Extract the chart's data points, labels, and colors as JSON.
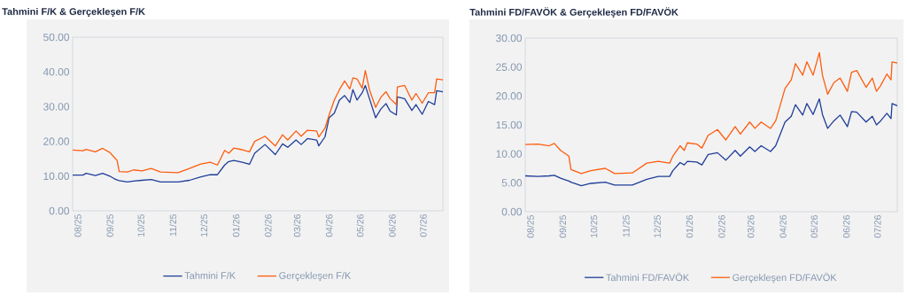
{
  "chart_data": [
    {
      "type": "line",
      "title": "Tahmini F/K & Gerçekleşen F/K",
      "x": [
        "2025-07-27",
        "2025-08-06",
        "2025-08-09",
        "2025-08-18",
        "2025-08-25",
        "2025-09-01",
        "2025-09-05",
        "2025-09-08",
        "2025-09-10",
        "2025-09-18",
        "2025-09-24",
        "2025-10-02",
        "2025-10-11",
        "2025-10-20",
        "2025-11-06",
        "2025-11-17",
        "2025-11-28",
        "2025-12-07",
        "2025-12-14",
        "2025-12-21",
        "2025-12-25",
        "2025-12-30",
        "2026-01-07",
        "2026-01-14",
        "2026-01-19",
        "2026-01-29",
        "2026-02-08",
        "2026-02-15",
        "2026-02-20",
        "2026-02-28",
        "2026-03-05",
        "2026-03-11",
        "2026-03-20",
        "2026-03-22",
        "2026-03-28",
        "2026-04-01",
        "2026-04-06",
        "2026-04-11",
        "2026-04-16",
        "2026-04-21",
        "2026-04-24",
        "2026-04-28",
        "2026-05-03",
        "2026-05-06",
        "2026-05-10",
        "2026-05-16",
        "2026-05-21",
        "2026-05-26",
        "2026-05-30",
        "2026-06-05",
        "2026-06-06",
        "2026-06-13",
        "2026-06-20",
        "2026-06-24",
        "2026-06-30",
        "2026-07-06",
        "2026-07-12",
        "2026-07-14",
        "2026-07-20"
      ],
      "series": [
        {
          "name": "Tahmini F/K",
          "color": "#1f3d99",
          "values": [
            10.3,
            10.3,
            10.8,
            10.2,
            10.8,
            10.0,
            9.3,
            8.9,
            8.7,
            8.3,
            8.6,
            8.8,
            9.0,
            8.3,
            8.3,
            8.8,
            9.8,
            10.4,
            10.4,
            13.2,
            14.2,
            14.5,
            14.0,
            13.4,
            16.6,
            19.1,
            16.2,
            19.3,
            18.3,
            20.4,
            19.1,
            20.8,
            20.4,
            18.7,
            21.3,
            26.8,
            28.1,
            31.9,
            33.2,
            31.2,
            34.9,
            31.9,
            34.0,
            36.1,
            32.3,
            26.8,
            29.3,
            30.9,
            28.7,
            27.6,
            32.8,
            32.3,
            28.9,
            30.6,
            27.8,
            31.5,
            30.6,
            34.6,
            34.3
          ]
        },
        {
          "name": "Gerçekleşen F/K",
          "color": "#fe5c0e",
          "values": [
            17.5,
            17.3,
            17.7,
            17.0,
            18.0,
            16.8,
            15.5,
            14.5,
            11.3,
            11.2,
            11.8,
            11.5,
            12.2,
            11.2,
            11.0,
            12.2,
            13.5,
            14.0,
            13.2,
            17.4,
            16.6,
            18.1,
            17.6,
            17.0,
            20.0,
            21.5,
            18.7,
            21.9,
            20.4,
            23.0,
            21.5,
            23.2,
            23.0,
            21.3,
            23.8,
            27.6,
            31.9,
            34.9,
            37.4,
            35.1,
            38.3,
            38.0,
            35.3,
            40.4,
            34.9,
            29.8,
            32.7,
            34.3,
            32.3,
            30.6,
            35.7,
            36.1,
            31.9,
            33.8,
            31.0,
            34.0,
            34.0,
            38.0,
            37.7
          ]
        }
      ],
      "xlim": [
        "2025-07-27",
        "2026-07-20"
      ],
      "xticks": [
        {
          "value": "2025-08-01",
          "label": "08/25"
        },
        {
          "value": "2025-09-01",
          "label": "09/25"
        },
        {
          "value": "2025-10-01",
          "label": "10/25"
        },
        {
          "value": "2025-11-01",
          "label": "11/25"
        },
        {
          "value": "2025-12-01",
          "label": "12/25"
        },
        {
          "value": "2026-01-01",
          "label": "01/26"
        },
        {
          "value": "2026-02-01",
          "label": "02/26"
        },
        {
          "value": "2026-03-01",
          "label": "03/26"
        },
        {
          "value": "2026-04-01",
          "label": "04/26"
        },
        {
          "value": "2026-05-01",
          "label": "05/26"
        },
        {
          "value": "2026-06-01",
          "label": "06/26"
        },
        {
          "value": "2026-07-01",
          "label": "07/26"
        }
      ],
      "ylim": [
        0,
        50
      ],
      "yticks": [
        {
          "value": 0,
          "label": "0.00"
        },
        {
          "value": 10,
          "label": "10.00"
        },
        {
          "value": 20,
          "label": "20.00"
        },
        {
          "value": 30,
          "label": "30.00"
        },
        {
          "value": 40,
          "label": "40.00"
        },
        {
          "value": 50,
          "label": "50.00"
        }
      ],
      "legend": "bottom",
      "marker": "none",
      "line_style": "solid",
      "grid": false
    },
    {
      "type": "line",
      "title": "Tahmini FD/FAVÖK & Gerçekleşen FD/FAVÖK",
      "x": [
        "2025-07-27",
        "2025-08-08",
        "2025-08-19",
        "2025-08-24",
        "2025-08-30",
        "2025-09-07",
        "2025-09-09",
        "2025-09-19",
        "2025-09-28",
        "2025-10-12",
        "2025-10-21",
        "2025-11-07",
        "2025-11-21",
        "2025-12-02",
        "2025-12-13",
        "2025-12-16",
        "2025-12-23",
        "2025-12-27",
        "2025-12-30",
        "2026-01-08",
        "2026-01-13",
        "2026-01-19",
        "2026-01-28",
        "2026-02-05",
        "2026-02-14",
        "2026-02-19",
        "2026-02-28",
        "2026-03-05",
        "2026-03-11",
        "2026-03-20",
        "2026-03-25",
        "2026-04-03",
        "2026-04-09",
        "2026-04-13",
        "2026-04-20",
        "2026-04-24",
        "2026-04-30",
        "2026-05-06",
        "2026-05-09",
        "2026-05-14",
        "2026-05-20",
        "2026-05-26",
        "2026-06-02",
        "2026-06-06",
        "2026-06-11",
        "2026-06-20",
        "2026-06-26",
        "2026-06-30",
        "2026-07-04",
        "2026-07-10",
        "2026-07-14",
        "2026-07-15",
        "2026-07-20"
      ],
      "series": [
        {
          "name": "Tahmini FD/FAVÖK",
          "color": "#1f3d99",
          "values": [
            6.2,
            6.1,
            6.2,
            6.3,
            5.8,
            5.3,
            5.1,
            4.5,
            4.9,
            5.1,
            4.6,
            4.6,
            5.6,
            6.1,
            6.1,
            7.1,
            8.5,
            8.1,
            8.7,
            8.6,
            8.1,
            9.9,
            10.2,
            8.9,
            10.6,
            9.6,
            11.2,
            10.4,
            11.4,
            10.4,
            11.4,
            15.5,
            16.5,
            18.5,
            16.7,
            18.7,
            16.8,
            19.5,
            16.8,
            14.4,
            15.7,
            16.7,
            14.7,
            17.3,
            17.2,
            15.5,
            16.5,
            15.0,
            15.7,
            17.0,
            16.1,
            18.7,
            18.3
          ]
        },
        {
          "name": "Gerçekleşen FD/FAVÖK",
          "color": "#fe5c0e",
          "values": [
            11.6,
            11.7,
            11.4,
            11.8,
            10.6,
            9.6,
            7.3,
            6.6,
            7.1,
            7.5,
            6.6,
            6.7,
            8.4,
            8.7,
            8.4,
            9.6,
            11.4,
            10.6,
            11.9,
            11.7,
            11.0,
            13.2,
            14.2,
            12.4,
            14.7,
            13.4,
            15.5,
            14.4,
            15.5,
            14.4,
            15.7,
            21.3,
            22.8,
            25.6,
            23.6,
            25.9,
            23.6,
            27.5,
            23.6,
            20.3,
            22.3,
            23.1,
            20.8,
            24.1,
            24.4,
            21.5,
            23.1,
            20.8,
            21.8,
            23.8,
            22.8,
            25.9,
            25.7
          ]
        }
      ],
      "xlim": [
        "2025-07-27",
        "2026-07-20"
      ],
      "xticks": [
        {
          "value": "2025-08-01",
          "label": "08/25"
        },
        {
          "value": "2025-09-01",
          "label": "09/25"
        },
        {
          "value": "2025-10-01",
          "label": "10/25"
        },
        {
          "value": "2025-11-01",
          "label": "11/25"
        },
        {
          "value": "2025-12-01",
          "label": "12/25"
        },
        {
          "value": "2026-01-01",
          "label": "01/26"
        },
        {
          "value": "2026-02-01",
          "label": "02/26"
        },
        {
          "value": "2026-03-01",
          "label": "03/26"
        },
        {
          "value": "2026-04-01",
          "label": "04/26"
        },
        {
          "value": "2026-05-01",
          "label": "05/26"
        },
        {
          "value": "2026-06-01",
          "label": "06/26"
        },
        {
          "value": "2026-07-01",
          "label": "07/26"
        }
      ],
      "ylim": [
        0,
        30
      ],
      "yticks": [
        {
          "value": 0,
          "label": "0.00"
        },
        {
          "value": 5,
          "label": "5.00"
        },
        {
          "value": 10,
          "label": "10.00"
        },
        {
          "value": 15,
          "label": "15.00"
        },
        {
          "value": 20,
          "label": "20.00"
        },
        {
          "value": 25,
          "label": "25.00"
        },
        {
          "value": 30,
          "label": "30.00"
        }
      ],
      "legend": "bottom",
      "marker": "none",
      "line_style": "solid",
      "grid": false
    }
  ]
}
